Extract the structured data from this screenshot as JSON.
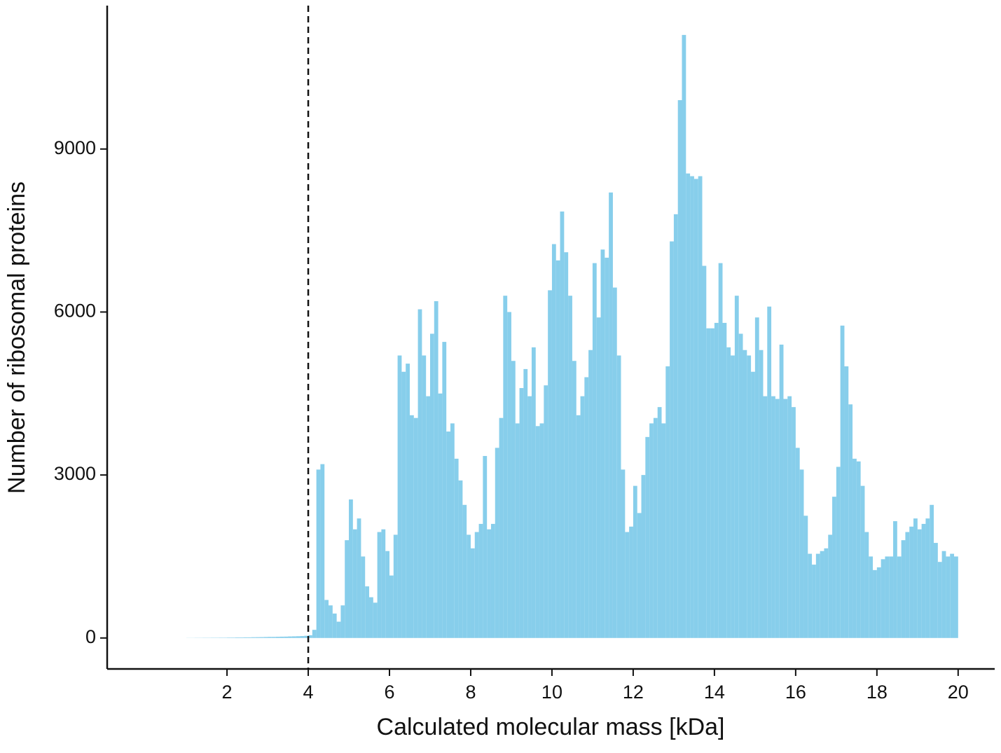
{
  "chart_data": {
    "type": "histogram",
    "x_label": "Calculated molecular mass [kDa]",
    "y_label": "Number of ribosomal proteins",
    "color": "#87ceeb",
    "bins": [
      1.0,
      1.1,
      1.2,
      1.3,
      1.4,
      1.5,
      1.6,
      1.7,
      1.8,
      1.9,
      2.0,
      2.1,
      2.2,
      2.3,
      2.4,
      2.5,
      2.6,
      2.7,
      2.8,
      2.9,
      3.0,
      3.1,
      3.2,
      3.3,
      3.4,
      3.5,
      3.6,
      3.7,
      3.8,
      3.9,
      4.0,
      4.1,
      4.2,
      4.3,
      4.4,
      4.5,
      4.6,
      4.7,
      4.8,
      4.9,
      5.0,
      5.1,
      5.2,
      5.3,
      5.4,
      5.5,
      5.6,
      5.7,
      5.8,
      5.9,
      6.0,
      6.1,
      6.2,
      6.3,
      6.4,
      6.5,
      6.6,
      6.7,
      6.8,
      6.9,
      7.0,
      7.1,
      7.2,
      7.3,
      7.4,
      7.5,
      7.6,
      7.7,
      7.8,
      7.9,
      8.0,
      8.1,
      8.2,
      8.3,
      8.4,
      8.5,
      8.6,
      8.7,
      8.8,
      8.9,
      9.0,
      9.1,
      9.2,
      9.3,
      9.4,
      9.5,
      9.6,
      9.7,
      9.8,
      9.9,
      10.0,
      10.1,
      10.2,
      10.3,
      10.4,
      10.5,
      10.6,
      10.7,
      10.8,
      10.9,
      11.0,
      11.1,
      11.2,
      11.3,
      11.4,
      11.5,
      11.6,
      11.7,
      11.8,
      11.9,
      12.0,
      12.1,
      12.2,
      12.3,
      12.4,
      12.5,
      12.6,
      12.7,
      12.8,
      12.9,
      13.0,
      13.1,
      13.2,
      13.3,
      13.4,
      13.5,
      13.6,
      13.7,
      13.8,
      13.9,
      14.0,
      14.1,
      14.2,
      14.3,
      14.4,
      14.5,
      14.6,
      14.7,
      14.8,
      14.9,
      15.0,
      15.1,
      15.2,
      15.3,
      15.4,
      15.5,
      15.6,
      15.7,
      15.8,
      15.9,
      16.0,
      16.1,
      16.2,
      16.3,
      16.4,
      16.5,
      16.6,
      16.7,
      16.8,
      16.9,
      17.0,
      17.1,
      17.2,
      17.3,
      17.4,
      17.5,
      17.6,
      17.7,
      17.8,
      17.9,
      18.0,
      18.1,
      18.2,
      18.3,
      18.4,
      18.5,
      18.6,
      18.7,
      18.8,
      18.9,
      19.0,
      19.1,
      19.2,
      19.3,
      19.4,
      19.5,
      19.6,
      19.7,
      19.8,
      19.9,
      20.0
    ],
    "counts": [
      2,
      2,
      3,
      3,
      4,
      4,
      5,
      5,
      6,
      6,
      8,
      8,
      10,
      10,
      12,
      12,
      14,
      15,
      16,
      18,
      20,
      20,
      22,
      24,
      25,
      28,
      30,
      32,
      35,
      40,
      50,
      150,
      3100,
      3200,
      700,
      600,
      450,
      300,
      600,
      1800,
      2550,
      2000,
      2200,
      1500,
      950,
      750,
      650,
      1950,
      2000,
      1600,
      1150,
      1900,
      5200,
      4900,
      5050,
      4100,
      4050,
      6050,
      5200,
      4450,
      5600,
      6200,
      4500,
      5450,
      3800,
      3950,
      3300,
      2900,
      2450,
      1900,
      1650,
      1950,
      2100,
      3350,
      2000,
      2100,
      3500,
      4050,
      6300,
      6000,
      5100,
      3950,
      4600,
      4950,
      4450,
      5350,
      3900,
      3950,
      4650,
      6400,
      7250,
      6950,
      7850,
      7100,
      6300,
      5100,
      4100,
      4450,
      4800,
      5300,
      6900,
      5900,
      7150,
      7000,
      8200,
      6450,
      5200,
      3100,
      1950,
      2050,
      2800,
      2300,
      3000,
      3700,
      3950,
      4050,
      4250,
      3950,
      5000,
      7300,
      7800,
      9900,
      11100,
      8550,
      8500,
      8450,
      8500,
      6850,
      5700,
      5700,
      5800,
      6900,
      5800,
      5350,
      5200,
      6300,
      5600,
      5300,
      5200,
      4900,
      5900,
      5300,
      4450,
      6100,
      4450,
      4400,
      5400,
      4400,
      4450,
      4250,
      3500,
      3100,
      2250,
      1550,
      1350,
      1550,
      1600,
      1650,
      1900,
      2600,
      3150,
      5750,
      5000,
      4300,
      3300,
      3250,
      2800,
      1950,
      1500,
      1250,
      1300,
      1450,
      1500,
      1500,
      2150,
      1500,
      1800,
      1950,
      2050,
      2200,
      2000,
      2100,
      2200,
      2450,
      1750,
      1400,
      1600,
      1500,
      1550,
      1500
    ],
    "vline": 4,
    "xlim": [
      -0.95,
      20.9
    ],
    "xticks": [
      2,
      4,
      6,
      8,
      10,
      12,
      14,
      16,
      18,
      20
    ],
    "ylim": [
      -570,
      11640
    ],
    "yticks": [
      0,
      3000,
      6000,
      9000
    ]
  }
}
